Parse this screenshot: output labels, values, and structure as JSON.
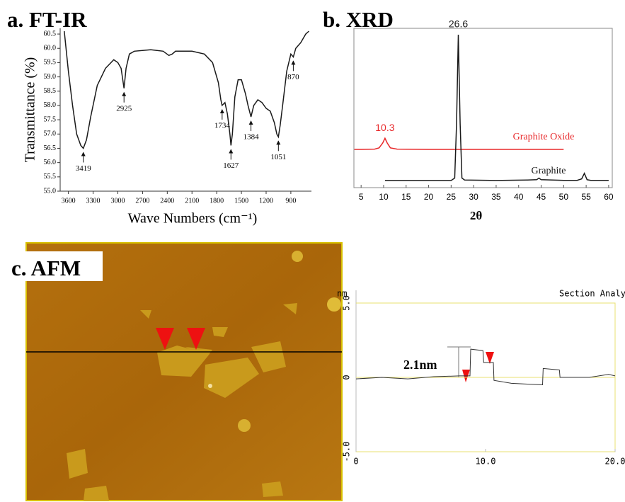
{
  "chart_data": [
    {
      "type": "line",
      "title": "a. FT-IR",
      "ylabel": "Transmittance (%)",
      "xlabel": "Wave Numbers  (cm⁻¹)",
      "x": [
        3650,
        3600,
        3550,
        3500,
        3450,
        3419,
        3380,
        3330,
        3250,
        3150,
        3050,
        3000,
        2960,
        2925,
        2900,
        2860,
        2800,
        2600,
        2450,
        2380,
        2340,
        2300,
        2100,
        1950,
        1850,
        1780,
        1750,
        1734,
        1700,
        1670,
        1640,
        1627,
        1610,
        1580,
        1540,
        1500,
        1450,
        1420,
        1384,
        1350,
        1300,
        1250,
        1200,
        1150,
        1100,
        1070,
        1051,
        1030,
        1000,
        950,
        900,
        870,
        840,
        780,
        720,
        680
      ],
      "series": [
        {
          "color": "#1a1a1a",
          "values": [
            60.6,
            59.2,
            58.0,
            57.0,
            56.6,
            56.5,
            56.8,
            57.6,
            58.7,
            59.3,
            59.6,
            59.5,
            59.3,
            58.6,
            59.3,
            59.8,
            59.9,
            59.95,
            59.9,
            59.75,
            59.8,
            59.9,
            59.9,
            59.8,
            59.5,
            58.8,
            58.2,
            58.0,
            58.1,
            57.7,
            57.0,
            56.6,
            57.0,
            58.3,
            58.9,
            58.9,
            58.4,
            58.0,
            57.6,
            58.0,
            58.2,
            58.1,
            57.9,
            57.8,
            57.4,
            57.0,
            56.9,
            57.3,
            58.0,
            59.2,
            59.8,
            59.7,
            60.0,
            60.2,
            60.5,
            60.6
          ]
        }
      ],
      "peaks": [
        3419,
        2925,
        1734,
        1627,
        1384,
        1051,
        870
      ],
      "xlim": [
        3700,
        650
      ],
      "xticks": [
        3600,
        3300,
        3000,
        2700,
        2400,
        2100,
        1800,
        1500,
        1200,
        900
      ],
      "ylim": [
        55,
        60.7
      ],
      "yticks": [
        {
          "value": 55,
          "label": "55.0"
        },
        55.5,
        {
          "value": 56,
          "label": "56.0"
        },
        56.5,
        {
          "value": 57,
          "label": "57.0"
        },
        57.5,
        {
          "value": 58,
          "label": "58.0"
        },
        58.5,
        {
          "value": 59,
          "label": "59.0"
        },
        59.5,
        {
          "value": 60,
          "label": "60.0"
        },
        60.5
      ]
    },
    {
      "type": "line",
      "title": "b. XRD",
      "xlabel": "2θ",
      "x": [
        3.5,
        5,
        8,
        9,
        9.8,
        10.3,
        10.8,
        11.5,
        13,
        20,
        25,
        25.8,
        26.2,
        26.6,
        27,
        27.4,
        28,
        35,
        42,
        44,
        44.5,
        45,
        50,
        53,
        54,
        54.6,
        55.2,
        56,
        60
      ],
      "series": [
        {
          "name": "Graphite Oxide",
          "color": "#e8282a",
          "peak": 10.3,
          "values": [
            24,
            24,
            24.2,
            25,
            28,
            31,
            28,
            25,
            24.2,
            24,
            24,
            24,
            24,
            24,
            24,
            24,
            24,
            24,
            24,
            24,
            24,
            24,
            24,
            null,
            null,
            null,
            null,
            null,
            null
          ]
        },
        {
          "name": "Graphite",
          "color": "#1a1a1a",
          "peak": 26.6,
          "values": [
            null,
            null,
            null,
            null,
            null,
            4.5,
            4.5,
            4.5,
            4.5,
            4.5,
            4.5,
            6,
            40,
            96,
            40,
            6,
            4.8,
            4.5,
            4.8,
            5,
            6,
            5,
            4.6,
            4.6,
            5.5,
            9,
            5,
            4.6,
            4.6
          ]
        }
      ],
      "xlim": [
        3.4,
        60.8
      ],
      "xticks": [
        5,
        10,
        15,
        20,
        25,
        30,
        35,
        40,
        45,
        50,
        55,
        60
      ],
      "ylim": [
        0,
        100
      ]
    },
    {
      "type": "line",
      "title": "c. AFM",
      "ylabel": "nm",
      "header": "Section Analy",
      "annotation": "2.1nm",
      "x": [
        0,
        2,
        4,
        6,
        8,
        8.8,
        8.85,
        9.8,
        9.85,
        10.6,
        10.65,
        12,
        14.4,
        14.45,
        15.7,
        15.75,
        18,
        19.5,
        20
      ],
      "series": [
        {
          "color": "#333333",
          "values": [
            -0.1,
            0,
            -0.1,
            0.05,
            0.1,
            0.1,
            1.9,
            1.8,
            1.0,
            1.0,
            -0.2,
            -0.4,
            -0.5,
            0.6,
            0.5,
            0,
            0,
            0.2,
            0.1
          ]
        }
      ],
      "xlim": [
        0,
        20
      ],
      "xticks": [
        0,
        {
          "value": 10,
          "label": "10.0"
        },
        {
          "value": 20,
          "label": "20.0"
        }
      ],
      "ylim": [
        -5,
        5
      ],
      "yticks": [
        {
          "value": -5,
          "label": "-5.0"
        },
        0,
        {
          "value": 5,
          "label": "5.0"
        }
      ],
      "grid": true
    }
  ]
}
